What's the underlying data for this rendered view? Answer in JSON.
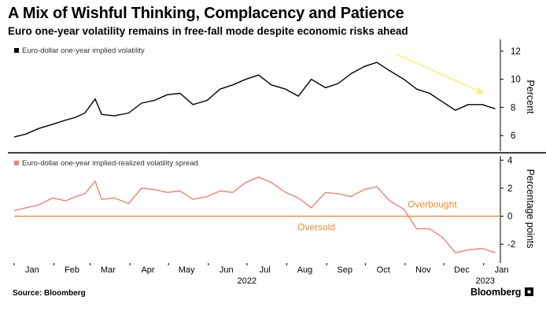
{
  "header": {
    "title": "A Mix of Wishful Thinking, Complacency and Patience",
    "subtitle": "Euro one-year volatility remains in free-fall mode despite economic risks ahead"
  },
  "footer": {
    "source": "Source: Bloomberg",
    "brand": "Bloomberg"
  },
  "colors": {
    "top_series": "#000000",
    "bottom_series": "#f08070",
    "threshold_line": "#f08a2a",
    "trend_arrow": "#f5f07a",
    "axis": "#000000",
    "grid": "#dddddd"
  },
  "chart_data": [
    {
      "type": "line",
      "legend": [
        "Euro-dollar one-year implied volatility"
      ],
      "ylabel": "Percent",
      "ylim": [
        5,
        12.5
      ],
      "yticks": [
        6,
        8,
        10,
        12
      ],
      "y_axis_side": "right",
      "annotations": [
        "downward trend arrow from late Oct to end of Dec"
      ],
      "series": [
        {
          "name": "Euro-dollar one-year implied volatility",
          "x": [
            "2022-01-01",
            "2022-01-10",
            "2022-01-20",
            "2022-01-31",
            "2022-02-10",
            "2022-02-18",
            "2022-02-25",
            "2022-03-05",
            "2022-03-10",
            "2022-03-20",
            "2022-03-31",
            "2022-04-10",
            "2022-04-20",
            "2022-04-30",
            "2022-05-10",
            "2022-05-20",
            "2022-05-31",
            "2022-06-10",
            "2022-06-20",
            "2022-06-30",
            "2022-07-10",
            "2022-07-20",
            "2022-07-31",
            "2022-08-10",
            "2022-08-20",
            "2022-08-31",
            "2022-09-10",
            "2022-09-20",
            "2022-09-30",
            "2022-10-10",
            "2022-10-20",
            "2022-10-31",
            "2022-11-10",
            "2022-11-20",
            "2022-11-30",
            "2022-12-10",
            "2022-12-20",
            "2022-12-31",
            "2023-01-10"
          ],
          "values": [
            5.9,
            6.1,
            6.5,
            6.8,
            7.1,
            7.3,
            7.6,
            8.6,
            7.5,
            7.4,
            7.6,
            8.3,
            8.5,
            8.9,
            9.0,
            8.2,
            8.5,
            9.3,
            9.6,
            10.0,
            10.3,
            9.6,
            9.3,
            8.8,
            10.0,
            9.4,
            9.7,
            10.4,
            10.9,
            11.2,
            10.6,
            10.0,
            9.3,
            9.0,
            8.4,
            7.8,
            8.2,
            8.2,
            7.9
          ]
        }
      ]
    },
    {
      "type": "line",
      "legend": [
        "Euro-dollar one-year implied-realized volatility spread"
      ],
      "ylabel": "Percentage points",
      "ylim": [
        -3,
        4.3
      ],
      "yticks": [
        -2,
        0,
        2,
        4
      ],
      "y_axis_side": "right",
      "thresholds": [
        {
          "value": 0,
          "label_above": "Overbought",
          "label_below": "Oversold"
        }
      ],
      "xlabels": [
        "Jan",
        "Feb",
        "Mar",
        "Apr",
        "May",
        "Jun",
        "Jul",
        "Aug",
        "Sep",
        "Oct",
        "Nov",
        "Dec",
        "Jan"
      ],
      "xyear_labels": [
        "2022",
        "2023"
      ],
      "series": [
        {
          "name": "Euro-dollar one-year implied-realized volatility spread",
          "x": [
            "2022-01-01",
            "2022-01-10",
            "2022-01-20",
            "2022-01-31",
            "2022-02-10",
            "2022-02-18",
            "2022-02-25",
            "2022-03-05",
            "2022-03-10",
            "2022-03-20",
            "2022-03-31",
            "2022-04-10",
            "2022-04-20",
            "2022-04-30",
            "2022-05-10",
            "2022-05-20",
            "2022-05-31",
            "2022-06-10",
            "2022-06-20",
            "2022-06-30",
            "2022-07-10",
            "2022-07-20",
            "2022-07-31",
            "2022-08-10",
            "2022-08-20",
            "2022-08-31",
            "2022-09-10",
            "2022-09-20",
            "2022-09-30",
            "2022-10-10",
            "2022-10-20",
            "2022-10-31",
            "2022-11-10",
            "2022-11-20",
            "2022-11-30",
            "2022-12-10",
            "2022-12-20",
            "2022-12-31",
            "2023-01-10"
          ],
          "values": [
            0.4,
            0.6,
            0.8,
            1.3,
            1.1,
            1.4,
            1.6,
            2.5,
            1.2,
            1.3,
            0.9,
            2.0,
            1.9,
            1.7,
            1.8,
            1.2,
            1.4,
            1.8,
            1.7,
            2.4,
            2.8,
            2.4,
            1.7,
            1.3,
            0.6,
            1.7,
            1.6,
            1.4,
            1.9,
            2.1,
            1.1,
            0.5,
            -0.9,
            -0.9,
            -1.5,
            -2.6,
            -2.4,
            -2.3,
            -2.6
          ]
        }
      ]
    }
  ]
}
